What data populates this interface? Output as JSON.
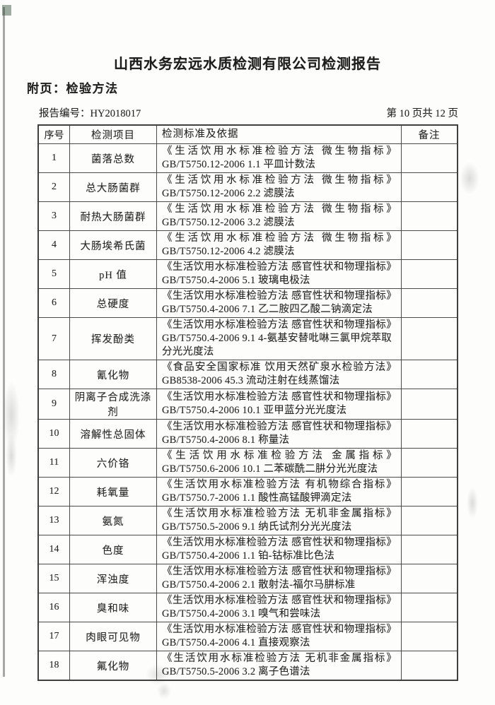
{
  "page": {
    "title": "山西水务宏远水质检测有限公司检测报告",
    "subtitle": "附页：检验方法",
    "report_no_label": "报告编号：",
    "report_no": "HY2018017",
    "page_indicator": "第 10 页共 12 页"
  },
  "colors": {
    "paper": "#fdfdfc",
    "ink": "#282826",
    "border": "#4a4a47"
  },
  "table": {
    "headers": {
      "no": "序号",
      "item": "检测项目",
      "standard": "检测标准及依据",
      "note": "备注"
    },
    "rows": [
      {
        "no": "1",
        "item": "菌落总数",
        "standard_title": "《生活饮用水标准检验方法 微生物指标》",
        "standard_method": "GB/T5750.12-2006  1.1 平皿计数法",
        "note": ""
      },
      {
        "no": "2",
        "item": "总大肠菌群",
        "standard_title": "《生活饮用水标准检验方法 微生物指标》",
        "standard_method": "GB/T5750.12-2006  2.2 滤膜法",
        "note": ""
      },
      {
        "no": "3",
        "item": "耐热大肠菌群",
        "standard_title": "《生活饮用水标准检验方法 微生物指标》",
        "standard_method": "GB/T5750.12-2006  3.2 滤膜法",
        "note": ""
      },
      {
        "no": "4",
        "item": "大肠埃希氏菌",
        "standard_title": "《生活饮用水标准检验方法 微生物指标》",
        "standard_method": "GB/T5750.12-2006  4.2 滤膜法",
        "note": ""
      },
      {
        "no": "5",
        "item": "pH 值",
        "standard_title": "《生活饮用水标准检验方法 感官性状和物理指标》",
        "standard_method": "GB/T5750.4-2006  5.1 玻璃电极法",
        "note": ""
      },
      {
        "no": "6",
        "item": "总硬度",
        "standard_title": "《生活饮用水标准检验方法 感官性状和物理指标》",
        "standard_method": "GB/T5750.4-2006  7.1 乙二胺四乙酸二钠滴定法",
        "note": ""
      },
      {
        "no": "7",
        "item": "挥发酚类",
        "standard_title": "《生活饮用水标准检验方法 感官性状和物理指标》",
        "standard_method": "GB/T5750.4-2006  9.1 4-氨基安替吡啉三氯甲烷萃取分光光度法",
        "note": ""
      },
      {
        "no": "8",
        "item": "氰化物",
        "standard_title": "《食品安全国家标准 饮用天然矿泉水检验方法》",
        "standard_method": "GB8538-2006  45.3 流动注射在线蒸馏法",
        "note": ""
      },
      {
        "no": "9",
        "item": "阴离子合成洗涤剂",
        "standard_title": "《生活饮用水标准检验方法 感官性状和物理指标》",
        "standard_method": "GB/T5750.4-2006  10.1 亚甲蓝分光光度法",
        "note": ""
      },
      {
        "no": "10",
        "item": "溶解性总固体",
        "standard_title": "《生活饮用水标准检验方法 感官性状和物理指标》",
        "standard_method": "GB/T5750.4-2006  8.1 称量法",
        "note": ""
      },
      {
        "no": "11",
        "item": "六价铬",
        "standard_title": "《生活饮用水标准检验方法 金属指标》",
        "standard_method": "GB/T5750.6-2006  10.1 二苯碳酰二肼分光光度法",
        "note": ""
      },
      {
        "no": "12",
        "item": "耗氧量",
        "standard_title": "《生活饮用水标准检验方法 有机物综合指标》",
        "standard_method": "GB/T5750.7-2006  1.1 酸性高锰酸钾滴定法",
        "note": ""
      },
      {
        "no": "13",
        "item": "氨氮",
        "standard_title": "《生活饮用水标准检验方法 无机非金属指标》",
        "standard_method": "GB/T5750.5-2006  9.1 纳氏试剂分光光度法",
        "note": ""
      },
      {
        "no": "14",
        "item": "色度",
        "standard_title": "《生活饮用水标准检验方法 感官性状和物理指标》",
        "standard_method": "GB/T5750.4-2006  1.1 铂-钴标准比色法",
        "note": ""
      },
      {
        "no": "15",
        "item": "浑浊度",
        "standard_title": "《生活饮用水标准检验方法 感官性状和物理指标》",
        "standard_method": "GB/T5750.4-2006  2.1 散射法-福尔马肼标准",
        "note": ""
      },
      {
        "no": "16",
        "item": "臭和味",
        "standard_title": "《生活饮用水标准检验方法 感官性状和物理指标》",
        "standard_method": "GB/T5750.4-2006  3.1 嗅气和尝味法",
        "note": ""
      },
      {
        "no": "17",
        "item": "肉眼可见物",
        "standard_title": "《生活饮用水标准检验方法 感官性状和物理指标》",
        "standard_method": "GB/T5750.4-2006  4.1 直接观察法",
        "note": ""
      },
      {
        "no": "18",
        "item": "氟化物",
        "standard_title": "《生活饮用水标准检验方法 无机非金属指标》",
        "standard_method": "GB/T5750.5-2006  3.2 离子色谱法",
        "note": ""
      }
    ]
  }
}
